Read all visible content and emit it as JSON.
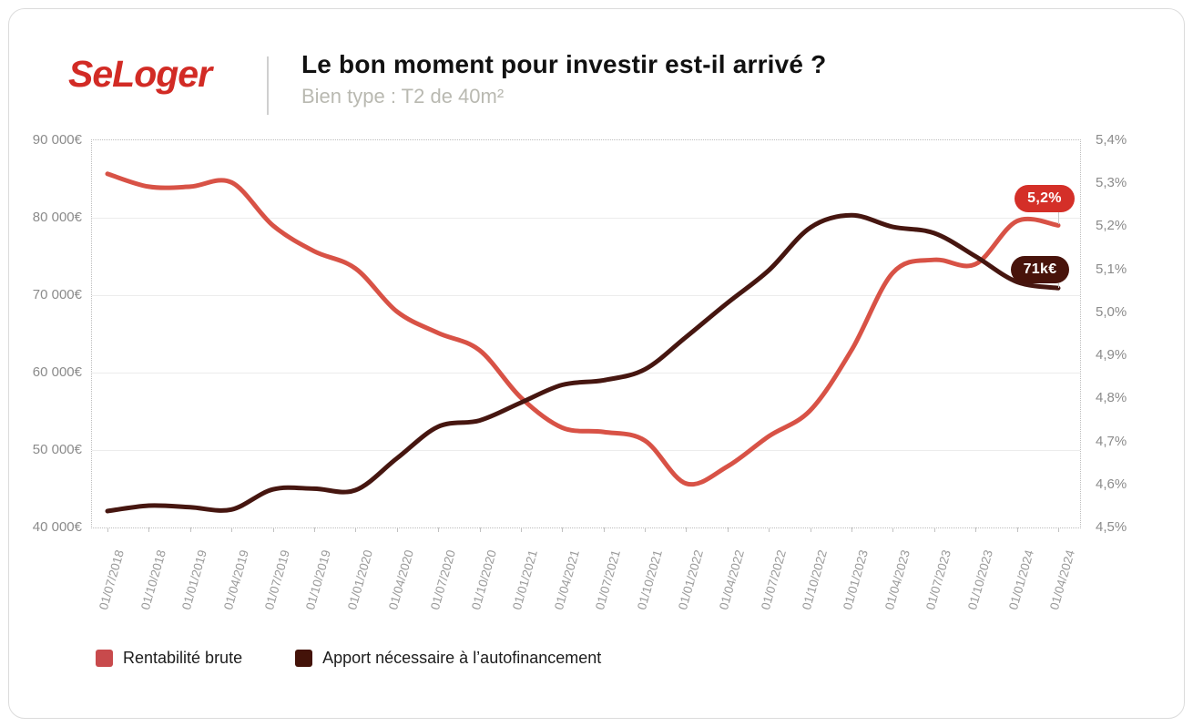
{
  "header": {
    "logo": "SeLoger",
    "logo_color": "#d22b25",
    "title": "Le bon moment pour investir est-il arrivé ?",
    "subtitle": "Bien type : T2 de 40m²"
  },
  "chart_data": {
    "type": "line",
    "title": "Le bon moment pour investir est-il arrivé ?",
    "subtitle": "Bien type : T2 de 40m²",
    "grid": "horizontal",
    "legend_position": "bottom",
    "x": [
      "01/07/2018",
      "01/10/2018",
      "01/01/2019",
      "01/04/2019",
      "01/07/2019",
      "01/10/2019",
      "01/01/2020",
      "01/04/2020",
      "01/07/2020",
      "01/10/2020",
      "01/01/2021",
      "01/04/2021",
      "01/07/2021",
      "01/10/2021",
      "01/01/2022",
      "01/04/2022",
      "01/07/2022",
      "01/10/2022",
      "01/01/2023",
      "01/04/2023",
      "01/07/2023",
      "01/10/2023",
      "01/01/2024",
      "01/04/2024"
    ],
    "series": [
      {
        "name": "Rentabilité brute",
        "axis": "right",
        "unit": "%",
        "color": "#d85246",
        "values": [
          5.32,
          5.29,
          5.29,
          5.3,
          5.2,
          5.14,
          5.1,
          5.0,
          4.95,
          4.91,
          4.8,
          4.73,
          4.72,
          4.7,
          4.6,
          4.64,
          4.71,
          4.77,
          4.91,
          5.09,
          5.12,
          5.11,
          5.21,
          5.2
        ]
      },
      {
        "name": "Apport nécessaire à l’autofinancement",
        "axis": "left",
        "unit": "€",
        "color": "#461610",
        "values": [
          42000,
          42700,
          42500,
          42200,
          44800,
          44900,
          44700,
          48800,
          52900,
          53700,
          56000,
          58300,
          58900,
          60300,
          64500,
          68900,
          73100,
          78600,
          80200,
          78700,
          77900,
          74900,
          71600,
          70800
        ]
      }
    ],
    "y_left": {
      "min": 40000,
      "max": 90000,
      "labels": [
        "90 000€",
        "80 000€",
        "70 000€",
        "60 000€",
        "50 000€",
        "40 000€"
      ],
      "gridline_values": [
        80000,
        70000,
        60000,
        50000
      ]
    },
    "y_right": {
      "min": 4.5,
      "max": 5.4,
      "labels": [
        "5,4%",
        "5,3%",
        "5,2%",
        "5,1%",
        "5,0%",
        "4,9%",
        "4,8%",
        "4,7%",
        "4,6%",
        "4,5%"
      ]
    },
    "annotations": [
      {
        "text": "5,2%",
        "series": "Rentabilité brute",
        "color": "#d42f28"
      },
      {
        "text": "71k€",
        "series": "Apport nécessaire à l’autofinancement",
        "color": "#48130b"
      }
    ]
  },
  "legend": {
    "items": [
      {
        "label": "Rentabilité brute",
        "color": "#c84a4c"
      },
      {
        "label": "Apport nécessaire à l’autofinancement",
        "color": "#441309"
      }
    ]
  }
}
